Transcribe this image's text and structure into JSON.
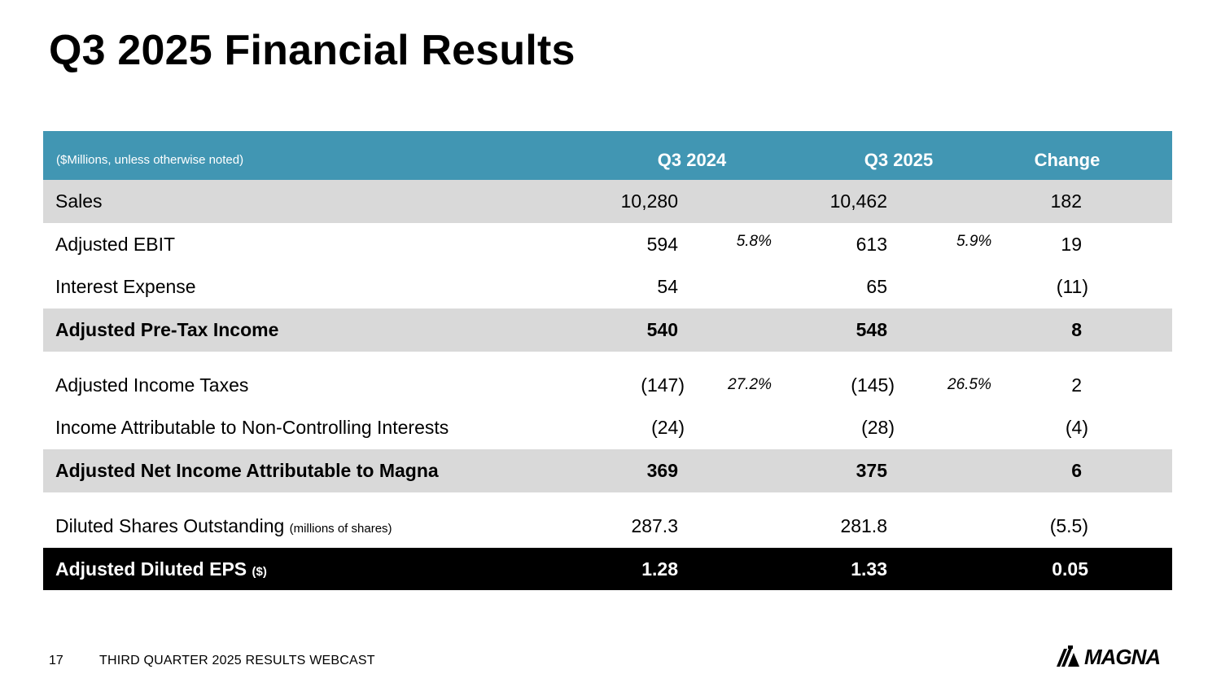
{
  "title": "Q3 2025 Financial Results",
  "table": {
    "header": {
      "units": "($Millions, unless otherwise noted)",
      "q3_2024": "Q3 2024",
      "q3_2025": "Q3 2025",
      "change": "Change"
    },
    "rows": [
      {
        "label": "Sales",
        "q3_2024": "10,280",
        "q3_2025": "10,462",
        "change": "182"
      },
      {
        "label": "Adjusted EBIT",
        "q3_2024": "594",
        "pct_2024": "5.8%",
        "q3_2025": "613",
        "pct_2025": "5.9%",
        "change": "19"
      },
      {
        "label": "Interest Expense",
        "q3_2024": "54",
        "q3_2025": "65",
        "change": "(11)"
      },
      {
        "label": "Adjusted Pre-Tax Income",
        "q3_2024": "540",
        "q3_2025": "548",
        "change": "8"
      },
      {
        "label": "Adjusted Income Taxes",
        "q3_2024": "(147)",
        "pct_2024": "27.2%",
        "q3_2025": "(145)",
        "pct_2025": "26.5%",
        "change": "2"
      },
      {
        "label": "Income Attributable to Non-Controlling Interests",
        "q3_2024": "(24)",
        "q3_2025": "(28)",
        "change": "(4)"
      },
      {
        "label": "Adjusted Net Income Attributable to Magna",
        "q3_2024": "369",
        "q3_2025": "375",
        "change": "6"
      },
      {
        "label": "Diluted Shares Outstanding",
        "units": "(millions of shares)",
        "q3_2024": "287.3",
        "q3_2025": "281.8",
        "change": "(5.5)"
      },
      {
        "label": "Adjusted Diluted EPS",
        "units": "($)",
        "q3_2024": "1.28",
        "q3_2025": "1.33",
        "change": "0.05"
      }
    ]
  },
  "footer": {
    "page_number": "17",
    "text": "THIRD QUARTER 2025 RESULTS WEBCAST",
    "logo_text": "MAGNA"
  }
}
